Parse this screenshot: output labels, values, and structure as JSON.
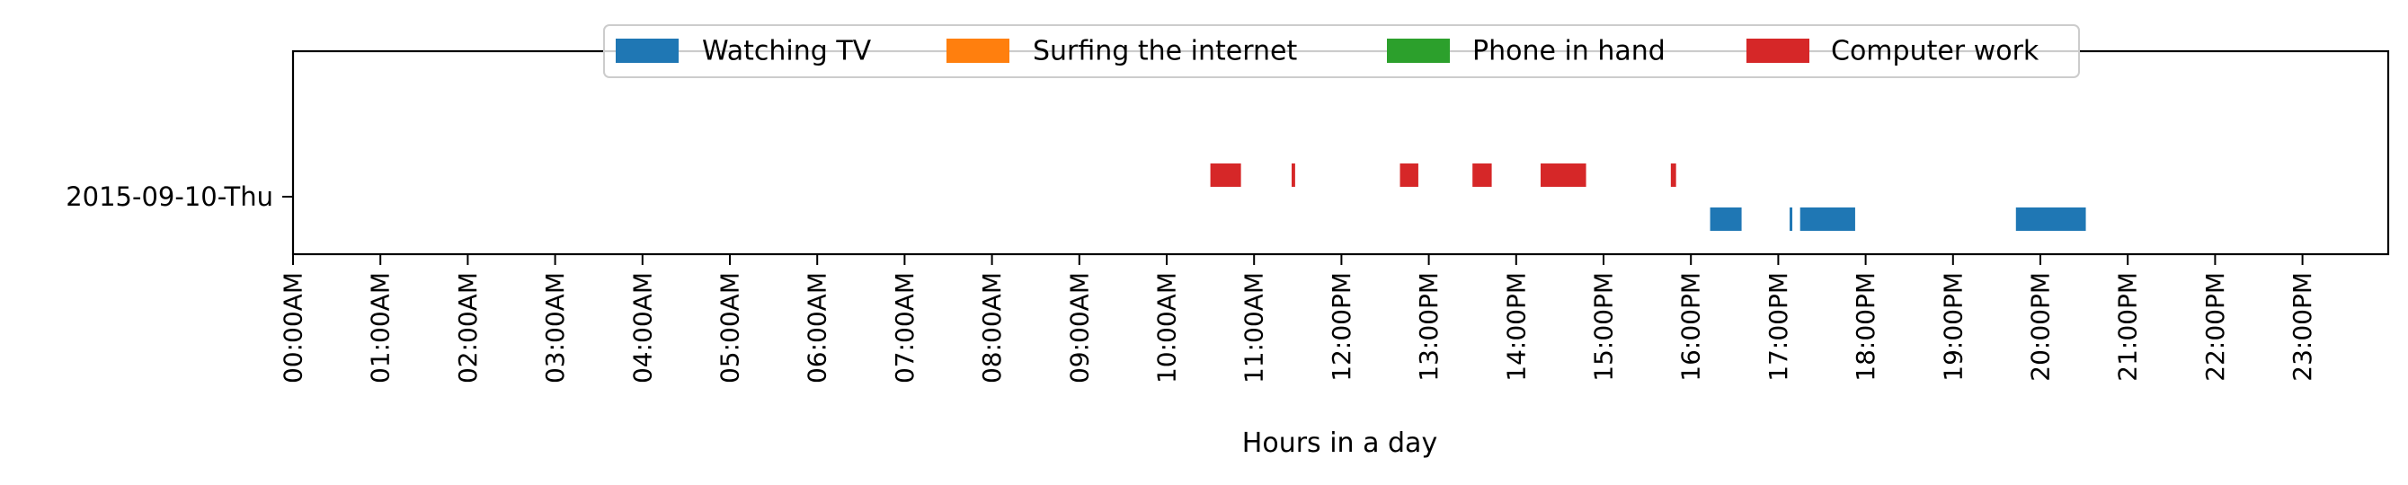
{
  "chart_data": {
    "type": "timeline",
    "xlabel": "Hours in a day",
    "xlim_hours": [
      0,
      24
    ],
    "x_ticks": [
      "00:00AM",
      "01:00AM",
      "02:00AM",
      "03:00AM",
      "04:00AM",
      "05:00AM",
      "06:00AM",
      "07:00AM",
      "08:00AM",
      "09:00AM",
      "10:00AM",
      "11:00AM",
      "12:00PM",
      "13:00PM",
      "14:00PM",
      "15:00PM",
      "16:00PM",
      "17:00PM",
      "18:00PM",
      "19:00PM",
      "20:00PM",
      "21:00PM",
      "22:00PM",
      "23:00PM"
    ],
    "categories": [
      "2015-09-10-Thu"
    ],
    "legend_position": "top-center",
    "grid": false,
    "series": [
      {
        "name": "Watching TV",
        "color": "#1f77b4",
        "intervals": [
          [
            16.22,
            16.58
          ],
          [
            17.13,
            17.16
          ],
          [
            17.25,
            17.88
          ],
          [
            19.72,
            20.52
          ]
        ]
      },
      {
        "name": "Surfing the internet",
        "color": "#ff7f0e",
        "intervals": []
      },
      {
        "name": "Phone in hand",
        "color": "#2ca02c",
        "intervals": []
      },
      {
        "name": "Computer work",
        "color": "#d62728",
        "intervals": [
          [
            10.5,
            10.85
          ],
          [
            11.43,
            11.47
          ],
          [
            12.67,
            12.88
          ],
          [
            13.5,
            13.72
          ],
          [
            14.28,
            14.8
          ],
          [
            15.77,
            15.83
          ]
        ]
      }
    ]
  }
}
